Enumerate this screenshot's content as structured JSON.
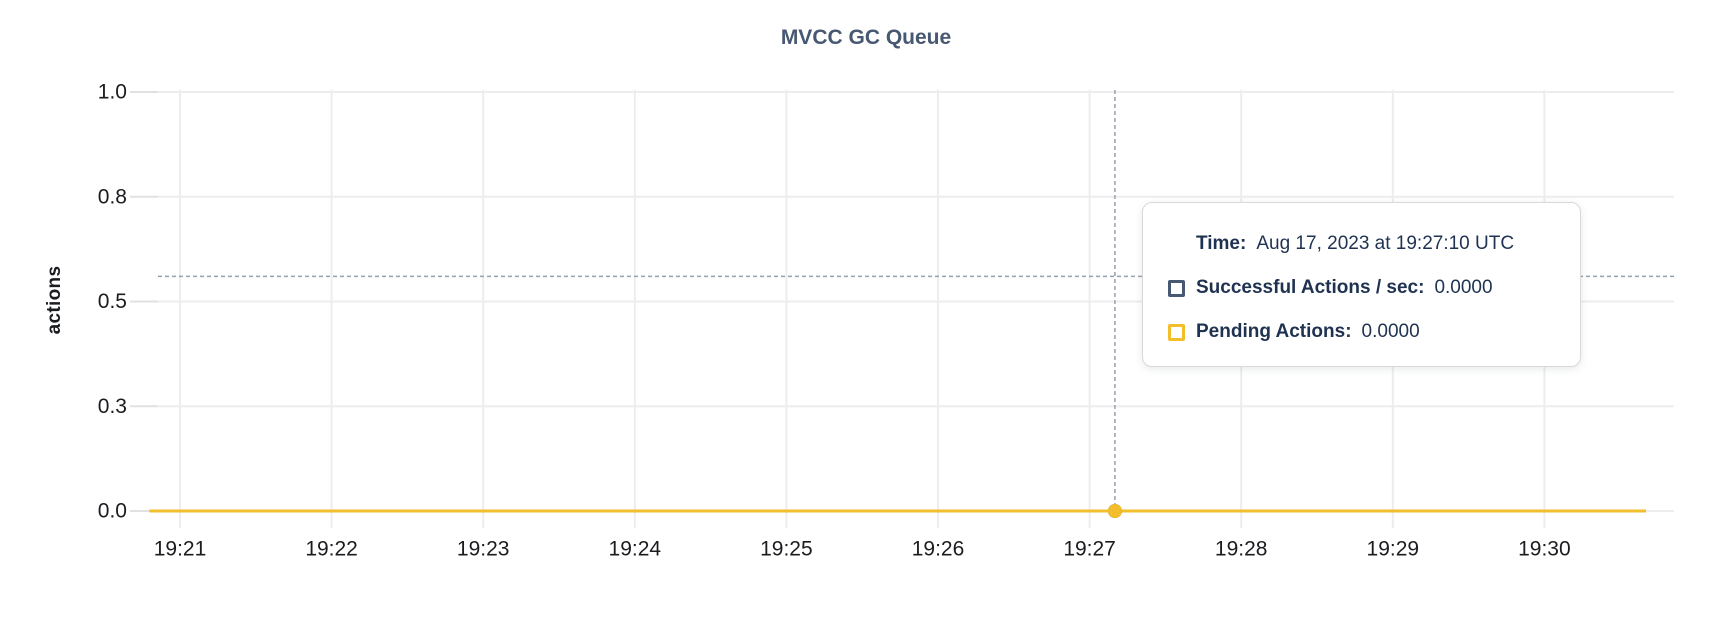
{
  "chart_data": {
    "type": "line",
    "title": "MVCC GC Queue",
    "xlabel": "",
    "ylabel": "actions",
    "ylim": [
      0,
      1.0
    ],
    "grid": true,
    "legend_position": "none (series identified in hover tooltip)",
    "x_tick_labels": [
      "19:21",
      "19:22",
      "19:23",
      "19:24",
      "19:25",
      "19:26",
      "19:27",
      "19:28",
      "19:29",
      "19:30"
    ],
    "x_data_range_minutes": [
      -0.2,
      9.67
    ],
    "y_ticks": [
      {
        "value": 0.0,
        "label": "0.0"
      },
      {
        "value": 0.25,
        "label": "0.3"
      },
      {
        "value": 0.5,
        "label": "0.5"
      },
      {
        "value": 0.75,
        "label": "0.8"
      },
      {
        "value": 1.0,
        "label": "1.0"
      }
    ],
    "series": [
      {
        "name": "Successful Actions / sec",
        "color": "#475872",
        "values": [
          0,
          0,
          0,
          0,
          0,
          0,
          0,
          0,
          0,
          0
        ]
      },
      {
        "name": "Pending Actions",
        "color": "#f2be2c",
        "values": [
          0,
          0,
          0,
          0,
          0,
          0,
          0,
          0,
          0,
          0
        ]
      }
    ],
    "hover_point": {
      "time": "19:27:10",
      "x_minutes_from_first_tick": 6.167,
      "series_values": [
        0.0,
        0.0
      ],
      "crosshair_y_value": 0.56
    }
  },
  "tooltip": {
    "time_label": "Time:",
    "time_value": "Aug 17, 2023 at 19:27:10 UTC",
    "rows": [
      {
        "label": "Successful Actions / sec:",
        "value": "0.0000",
        "swatch_color": "#475872"
      },
      {
        "label": "Pending Actions:",
        "value": "0.0000",
        "swatch_color": "#f2be2c"
      }
    ]
  },
  "colors": {
    "background": "#ffffff",
    "title_text": "#475872",
    "axis_text": "#1a1c1f",
    "gridline": "#ededed",
    "tick_stub": "#e1e1e1",
    "crosshair": "#97a1ae",
    "tooltip_text": "#1f3251",
    "tooltip_border": "#d9d9d9"
  }
}
